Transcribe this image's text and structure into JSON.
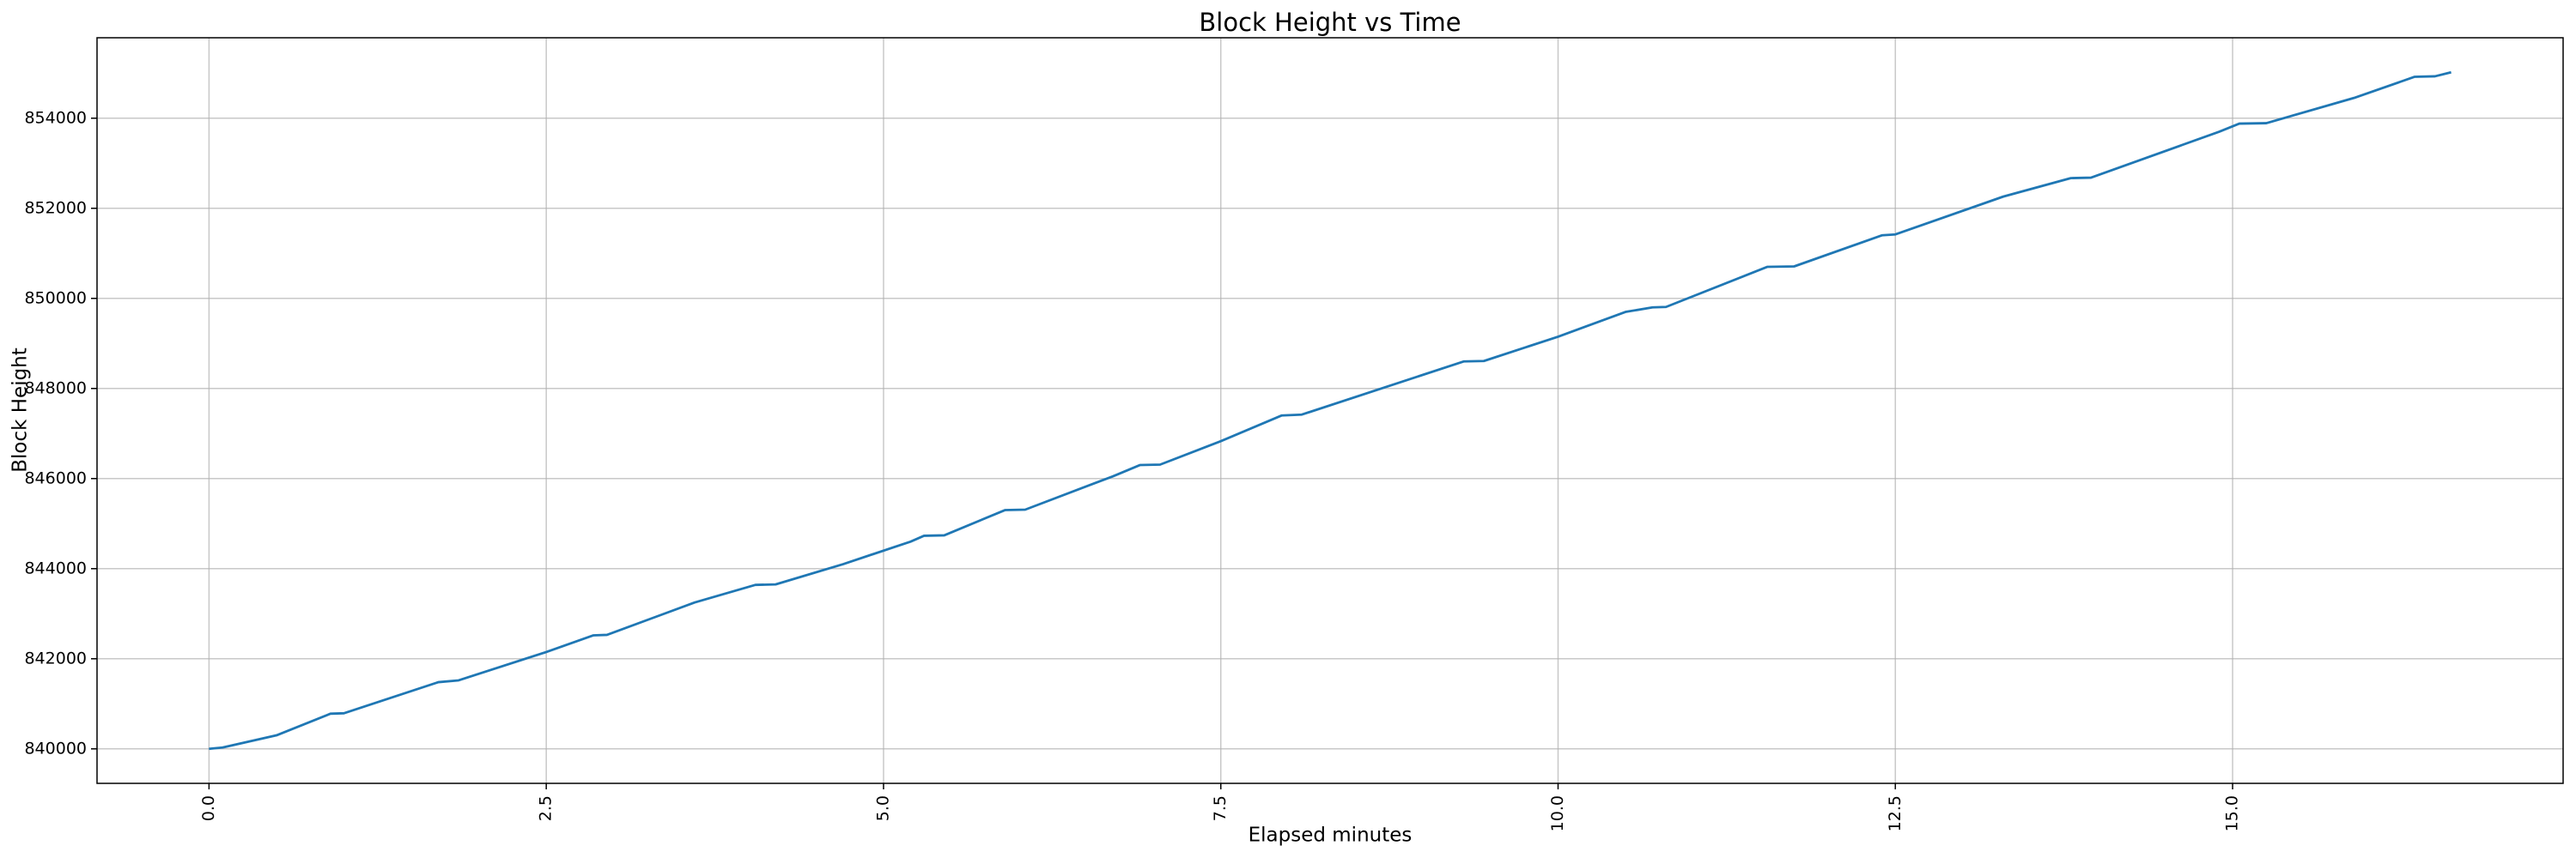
{
  "chart_data": {
    "type": "line",
    "title": "Block Height vs Time",
    "x_label": "Elapsed minutes",
    "y_label": "Block Height",
    "color": "#1f77b4",
    "grid": true,
    "x": [
      0,
      0.1,
      0.5,
      0.9,
      1.0,
      1.7,
      1.85,
      2.5,
      2.85,
      2.95,
      3.6,
      4.05,
      4.2,
      4.7,
      5.2,
      5.3,
      5.45,
      5.9,
      6.05,
      6.7,
      6.9,
      7.05,
      7.5,
      7.95,
      8.1,
      9.3,
      9.45,
      10.0,
      10.5,
      10.7,
      10.8,
      11.55,
      11.75,
      12.4,
      12.5,
      13.3,
      13.8,
      13.95,
      14.9,
      15.05,
      15.25,
      15.9,
      16.35,
      16.5,
      16.62
    ],
    "values": [
      840000,
      840030,
      840300,
      840780,
      840790,
      841480,
      841520,
      842150,
      842520,
      842530,
      843250,
      843640,
      843650,
      844100,
      844600,
      844730,
      844740,
      845300,
      845310,
      846050,
      846300,
      846310,
      846830,
      847400,
      847420,
      848600,
      848610,
      849150,
      849700,
      849800,
      849810,
      850700,
      850710,
      851400,
      851420,
      852260,
      852670,
      852680,
      853700,
      853880,
      853890,
      854450,
      854920,
      854930,
      855020
    ],
    "xlim": [
      -0.83,
      17.45
    ],
    "xticks": [
      {
        "value": 0,
        "label": "0.0"
      },
      2.5,
      {
        "value": 5,
        "label": "5.0"
      },
      7.5,
      {
        "value": 10,
        "label": "10.0"
      },
      12.5,
      {
        "value": 15,
        "label": "15.0"
      }
    ],
    "ylim": [
      839234,
      855786
    ],
    "yticks": [
      840000,
      842000,
      844000,
      846000,
      848000,
      850000,
      852000,
      854000
    ]
  }
}
